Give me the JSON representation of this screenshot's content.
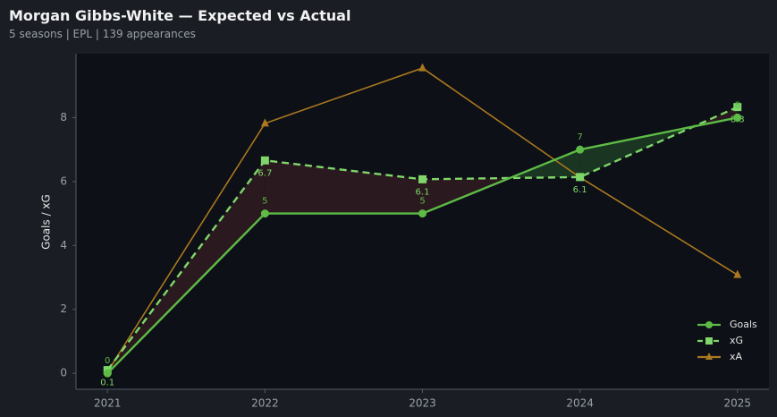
{
  "chart_data": {
    "type": "line",
    "title": "Morgan Gibbs-White — Expected vs Actual",
    "subtitle": "5 seasons | EPL | 139 appearances",
    "y_label": "Goals / xG",
    "x": [
      2021,
      2022,
      2023,
      2024,
      2025
    ],
    "xlim": [
      2020.8,
      2025.2
    ],
    "xticks": [
      2021,
      2022,
      2023,
      2024,
      2025
    ],
    "ylim": [
      -0.5,
      10
    ],
    "yticks": [
      0,
      2,
      4,
      6,
      8
    ],
    "legend": "lower right",
    "fill_between": {
      "over_color": "#2d1b1f",
      "under_color": "#1c3a22"
    },
    "series": [
      {
        "name": "Goals",
        "color": "#5dbb46",
        "marker": "circle",
        "dash": false,
        "labels": "above",
        "values": [
          0,
          5,
          5,
          7,
          8
        ]
      },
      {
        "name": "xG",
        "color": "#7fd66a",
        "marker": "square",
        "dash": true,
        "labels": "below",
        "values": [
          0.1,
          6.66,
          6.07,
          6.14,
          8.33
        ],
        "value_labels": [
          "0.1",
          "6.7",
          "6.1",
          "6.1",
          "8.3"
        ]
      },
      {
        "name": "xA",
        "color": "#a9781f",
        "marker": "triangle",
        "dash": false,
        "values": [
          0.05,
          7.82,
          9.55,
          6.13,
          3.08
        ]
      }
    ]
  }
}
